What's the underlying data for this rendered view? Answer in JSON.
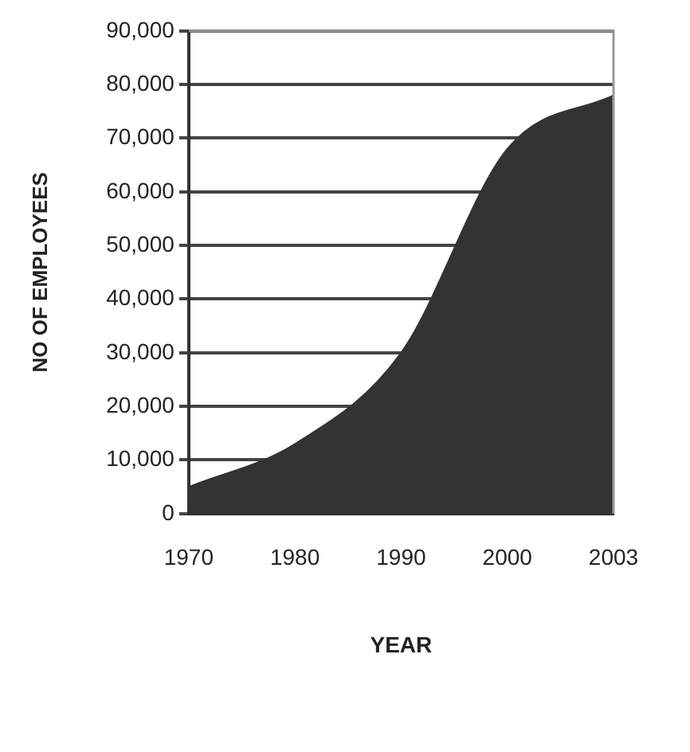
{
  "chart_data": {
    "type": "area",
    "xlabel": "YEAR",
    "ylabel": "NO OF EMPLOYEES",
    "categories": [
      "1970",
      "1980",
      "1990",
      "2000",
      "2003"
    ],
    "series": [
      {
        "color": "#333333",
        "values": [
          5000,
          13000,
          30000,
          68000,
          78000
        ]
      }
    ],
    "ylim": [
      0,
      90000
    ],
    "yticks": [
      0,
      {
        "value": 10000,
        "label": "10,000"
      },
      {
        "value": 20000,
        "label": "20,000"
      },
      {
        "value": 30000,
        "label": "30,000"
      },
      {
        "value": 40000,
        "label": "40,000"
      },
      {
        "value": 50000,
        "label": "50,000"
      },
      {
        "value": 60000,
        "label": "60,000"
      },
      {
        "value": 70000,
        "label": "70,000"
      },
      {
        "value": 80000,
        "label": "80,000"
      },
      {
        "value": 90000,
        "label": "90,000"
      }
    ],
    "grid": "y",
    "legend": false
  }
}
